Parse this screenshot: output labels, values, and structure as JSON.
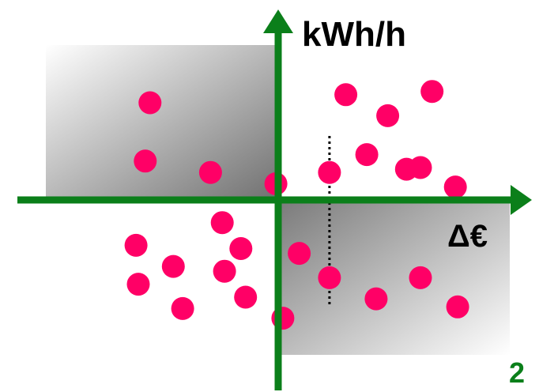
{
  "chart_data": {
    "type": "scatter",
    "title": "",
    "xlabel": "Δ€",
    "ylabel": "kWh/h",
    "xlim": [
      -10,
      10
    ],
    "ylim": [
      -10,
      10
    ],
    "grid": false,
    "legend": "none",
    "axis_color": "#0b7f1a",
    "point_color": "#ff0066",
    "page_number": "2",
    "series": [
      {
        "values": [
          {
            "x": -5.5,
            "y": 6.0
          },
          {
            "x": -5.7,
            "y": 2.4
          },
          {
            "x": -2.9,
            "y": 1.7
          },
          {
            "x": -0.1,
            "y": 1.0
          },
          {
            "x": 2.2,
            "y": 1.7
          },
          {
            "x": 3.8,
            "y": 2.8
          },
          {
            "x": 2.9,
            "y": 6.5
          },
          {
            "x": 4.7,
            "y": 5.2
          },
          {
            "x": 6.6,
            "y": 6.7
          },
          {
            "x": 5.5,
            "y": 1.9
          },
          {
            "x": 6.1,
            "y": 2.0
          },
          {
            "x": 7.6,
            "y": 0.8
          },
          {
            "x": -2.4,
            "y": -1.4
          },
          {
            "x": -6.1,
            "y": -2.8
          },
          {
            "x": -4.5,
            "y": -4.1
          },
          {
            "x": -1.6,
            "y": -3.0
          },
          {
            "x": -2.3,
            "y": -4.4
          },
          {
            "x": -6.0,
            "y": -5.2
          },
          {
            "x": -4.1,
            "y": -6.7
          },
          {
            "x": -1.4,
            "y": -6.0
          },
          {
            "x": 0.9,
            "y": -3.3
          },
          {
            "x": 2.2,
            "y": -4.8
          },
          {
            "x": 4.2,
            "y": -6.1
          },
          {
            "x": 6.1,
            "y": -4.8
          },
          {
            "x": 7.7,
            "y": -6.6
          },
          {
            "x": 0.2,
            "y": -7.3
          }
        ]
      }
    ],
    "threshold_x": 2.2
  }
}
